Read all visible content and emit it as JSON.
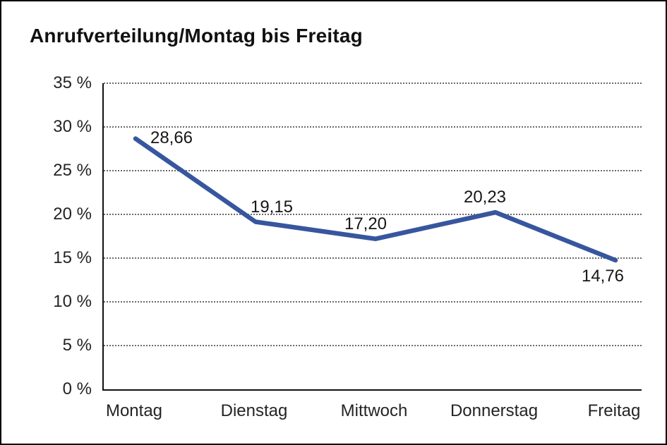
{
  "page": {
    "background_color": "#ffffff",
    "border_color": "#000000"
  },
  "title": "Anrufverteilung/Montag bis Freitag",
  "chart_data": {
    "type": "line",
    "title": "Anrufverteilung/Montag bis Freitag",
    "categories": [
      "Montag",
      "Dienstag",
      "Mittwoch",
      "Donnerstag",
      "Freitag"
    ],
    "values": [
      28.66,
      19.15,
      17.2,
      20.23,
      14.76
    ],
    "point_labels": [
      "28,66",
      "19,15",
      "17,20",
      "20,23",
      "14,76"
    ],
    "xlabel": "",
    "ylabel": "",
    "ylim": [
      0,
      35
    ],
    "y_tick_values": [
      35,
      30,
      25,
      20,
      15,
      10,
      5,
      0
    ],
    "y_tick_labels": [
      "35 %",
      "30 %",
      "25 %",
      "20 %",
      "15 %",
      "10 %",
      "5 %",
      "0 %"
    ],
    "grid": "horizontal-dotted",
    "legend": "none",
    "line_color": "#37569F",
    "axis_color": "#111111",
    "tick_label_color": "#242424"
  }
}
